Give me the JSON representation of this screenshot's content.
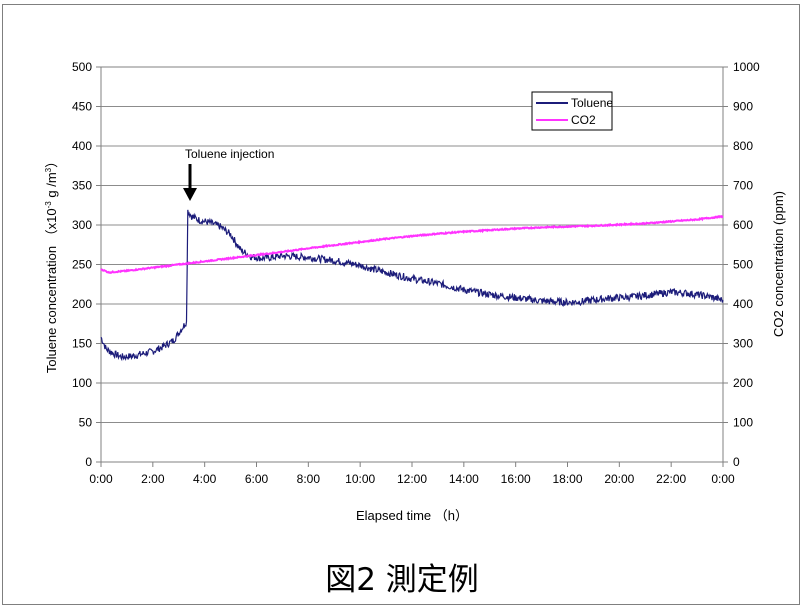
{
  "chart_data": {
    "type": "line",
    "xlabel": "Elapsed time （h）",
    "ylabel_left": "Toluene concentration （x10-3 g /m3）",
    "ylabel_left_parts": [
      "Toluene concentration （x10",
      "-3",
      " g /m",
      "3",
      "）"
    ],
    "ylabel_right": "CO2 concentration (ppm)",
    "x_ticks": [
      "0:00",
      "2:00",
      "4:00",
      "6:00",
      "8:00",
      "10:00",
      "12:00",
      "14:00",
      "16:00",
      "18:00",
      "20:00",
      "22:00",
      "0:00"
    ],
    "xlim": [
      0,
      24
    ],
    "ylim_left": [
      0,
      500
    ],
    "ylim_right": [
      0,
      1000
    ],
    "y_ticks_left": [
      "0",
      "50",
      "100",
      "150",
      "200",
      "250",
      "300",
      "350",
      "400",
      "450",
      "500"
    ],
    "y_ticks_right": [
      "0",
      "100",
      "200",
      "300",
      "400",
      "500",
      "600",
      "700",
      "800",
      "900",
      "1000"
    ],
    "grid": "horizontal",
    "legend_position": "top-right",
    "series": [
      {
        "name": "Toluene",
        "axis": "left",
        "color": "#1c1c7a",
        "x": [
          0,
          0.2,
          0.5,
          0.8,
          1.2,
          1.6,
          2.0,
          2.4,
          2.8,
          3.1,
          3.3,
          3.35,
          3.5,
          3.8,
          4.2,
          4.6,
          5.0,
          5.4,
          5.8,
          6.2,
          6.6,
          7.0,
          7.5,
          8.0,
          8.5,
          9.0,
          9.5,
          10.0,
          10.5,
          11.0,
          11.5,
          12.0,
          12.5,
          13.0,
          13.5,
          14.0,
          14.5,
          15.0,
          15.5,
          16.0,
          16.5,
          17.0,
          17.5,
          18.0,
          18.5,
          19.0,
          19.5,
          20.0,
          20.5,
          21.0,
          21.5,
          22.0,
          22.5,
          23.0,
          23.5,
          24.0
        ],
        "values": [
          158,
          143,
          137,
          133,
          134,
          137,
          140,
          146,
          154,
          168,
          178,
          318,
          311,
          306,
          303,
          298,
          288,
          268,
          260,
          258,
          259,
          261,
          260,
          259,
          257,
          255,
          252,
          249,
          244,
          240,
          236,
          232,
          229,
          226,
          222,
          218,
          215,
          212,
          210,
          208,
          206,
          204,
          203,
          202,
          203,
          205,
          207,
          208,
          209,
          211,
          213,
          215,
          214,
          212,
          209,
          205
        ]
      },
      {
        "name": "CO2",
        "axis": "right",
        "color": "#ff33ff",
        "x": [
          0,
          0.3,
          1,
          2,
          3,
          4,
          5,
          6,
          7,
          8,
          9,
          10,
          11,
          12,
          13,
          14,
          15,
          16,
          17,
          18,
          19,
          20,
          21,
          22,
          23,
          24
        ],
        "values": [
          488,
          480,
          484,
          492,
          500,
          508,
          516,
          524,
          532,
          541,
          549,
          557,
          565,
          572,
          578,
          583,
          587,
          591,
          594,
          596,
          598,
          601,
          604,
          609,
          614,
          622
        ]
      }
    ],
    "annotations": [
      {
        "text": "Toluene injection",
        "x": 3.35,
        "y": 318
      }
    ]
  },
  "caption": "図2 測定例"
}
